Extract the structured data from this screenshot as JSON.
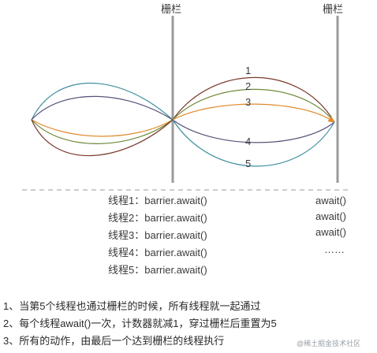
{
  "barriers": {
    "left_title": "栅栏",
    "right_title": "栅栏"
  },
  "curve_labels": [
    "1",
    "2",
    "3",
    "4",
    "5"
  ],
  "colors": {
    "barrier": "#9b9b9b",
    "thread1": "#7a3a2c",
    "thread2": "#6f8a3a",
    "thread3": "#e08a2c",
    "thread4": "#55557a",
    "thread5": "#3f8fa0",
    "dashed": "#9b9b9b"
  },
  "thread_calls": [
    "线程1：barrier.await()",
    "线程2：barrier.await()",
    "线程3：barrier.await()",
    "线程4：barrier.await()",
    "线程5：barrier.await()"
  ],
  "right_calls": [
    "await()",
    "await()",
    "await()",
    "……"
  ],
  "notes": [
    "1、当第5个线程也通过栅栏的时候，所有线程就一起通过",
    "2、每个线程await()一次，计数器就减1，穿过栅栏后重置为5",
    "3、所有的动作，由最后一个达到栅栏的线程执行"
  ],
  "watermark": "@稀土掘金技术社区"
}
